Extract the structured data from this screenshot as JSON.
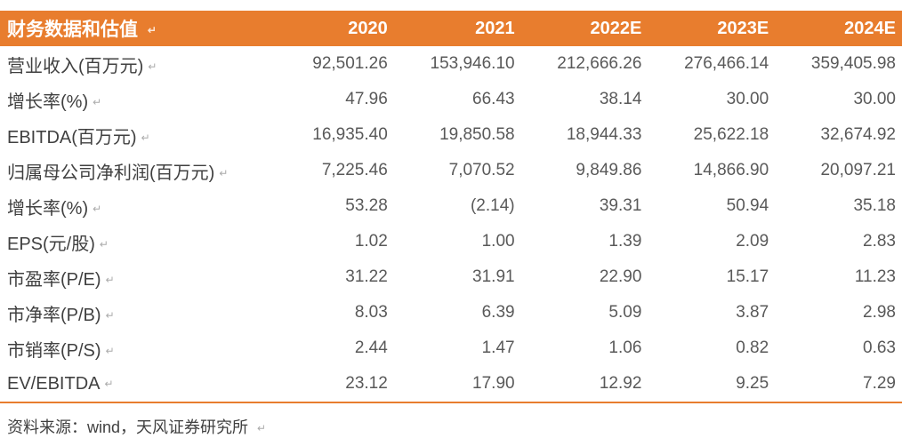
{
  "document": {
    "paragraph_mark": "↵",
    "title_bar": {
      "title": "财务数据和估值"
    },
    "columns": [
      "2020",
      "2021",
      "2022E",
      "2023E",
      "2024E"
    ],
    "rows": [
      {
        "label": "营业收入(百万元)",
        "values": [
          "92,501.26",
          "153,946.10",
          "212,666.26",
          "276,466.14",
          "359,405.98"
        ]
      },
      {
        "label": "增长率(%)",
        "values": [
          "47.96",
          "66.43",
          "38.14",
          "30.00",
          "30.00"
        ]
      },
      {
        "label": "EBITDA(百万元)",
        "values": [
          "16,935.40",
          "19,850.58",
          "18,944.33",
          "25,622.18",
          "32,674.92"
        ]
      },
      {
        "label": "归属母公司净利润(百万元)",
        "values": [
          "7,225.46",
          "7,070.52",
          "9,849.86",
          "14,866.90",
          "20,097.21"
        ]
      },
      {
        "label": "增长率(%)",
        "values": [
          "53.28",
          "(2.14)",
          "39.31",
          "50.94",
          "35.18"
        ]
      },
      {
        "label": "EPS(元/股)",
        "values": [
          "1.02",
          "1.00",
          "1.39",
          "2.09",
          "2.83"
        ]
      },
      {
        "label": "市盈率(P/E)",
        "values": [
          "31.22",
          "31.91",
          "22.90",
          "15.17",
          "11.23"
        ]
      },
      {
        "label": "市净率(P/B)",
        "values": [
          "8.03",
          "6.39",
          "5.09",
          "3.87",
          "2.98"
        ]
      },
      {
        "label": "市销率(P/S)",
        "values": [
          "2.44",
          "1.47",
          "1.06",
          "0.82",
          "0.63"
        ]
      },
      {
        "label": "EV/EBITDA",
        "values": [
          "23.12",
          "17.90",
          "12.92",
          "9.25",
          "7.29"
        ]
      }
    ],
    "footer": {
      "source_text": "资料来源：wind，天风证券研究所"
    },
    "colors": {
      "accent_orange": "#E87D2E",
      "header_text": "#FFFFFF",
      "label_text": "#404040",
      "number_text": "#595959",
      "paragraph_mark_gray": "#ABABAB"
    }
  }
}
